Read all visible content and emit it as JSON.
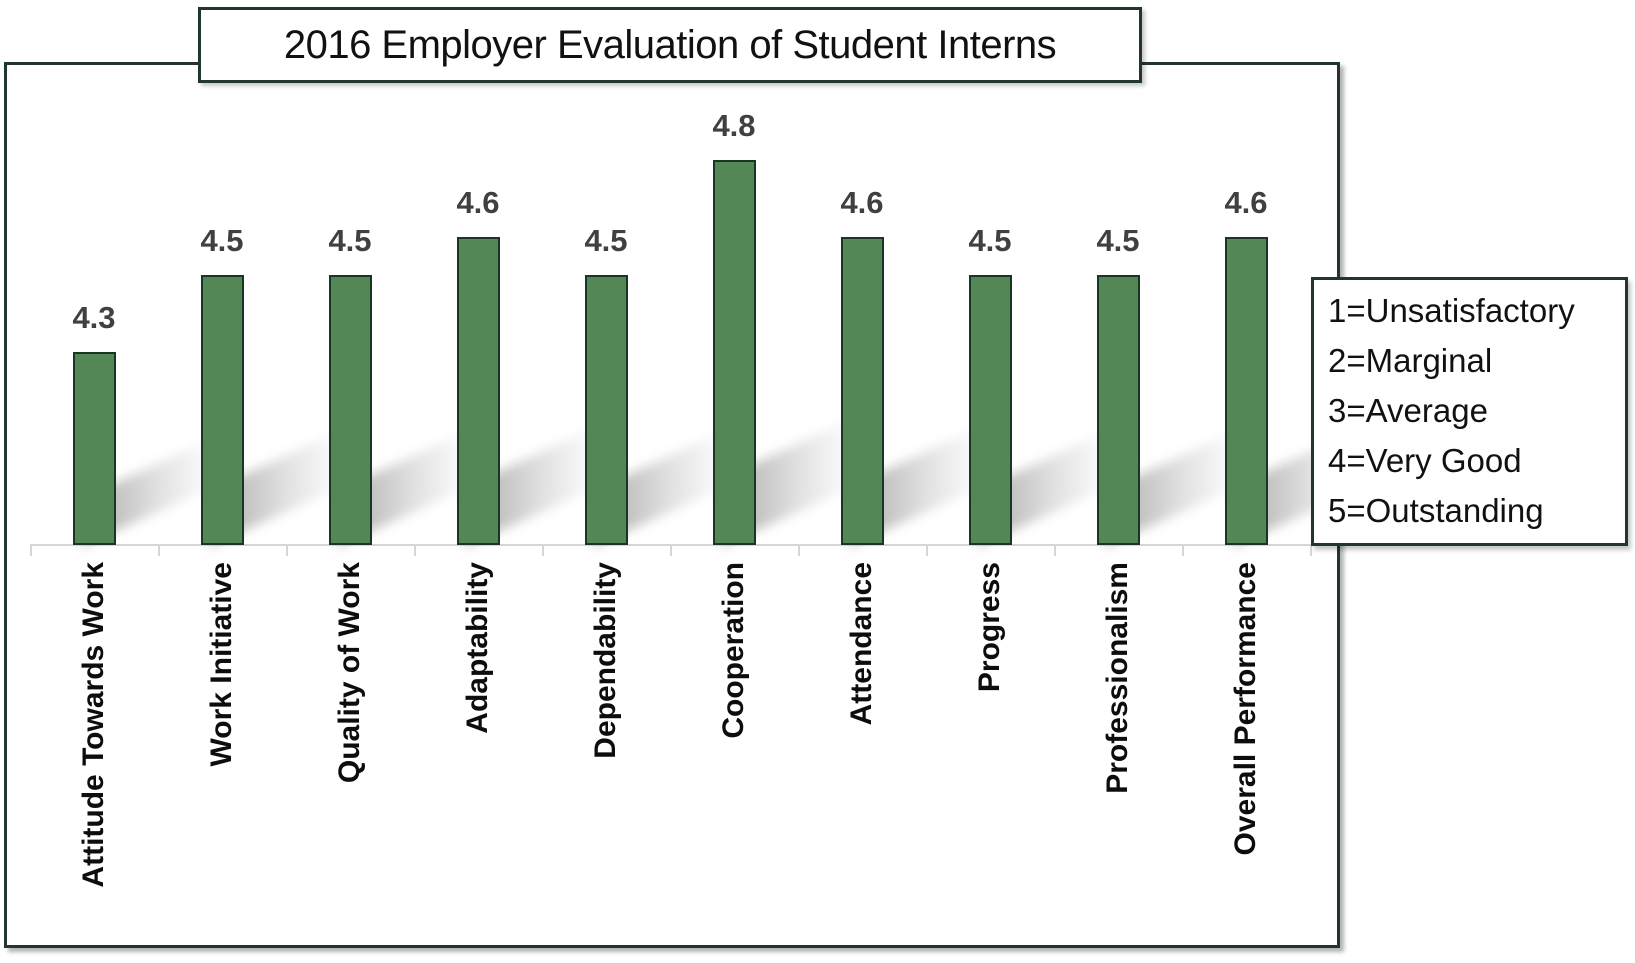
{
  "chart_data": {
    "type": "bar",
    "title": "2016 Employer Evaluation of Student Interns",
    "categories": [
      "Attitude Towards Work",
      "Work Initiative",
      "Quality of Work",
      "Adaptability",
      "Dependability",
      "Cooperation",
      "Attendance",
      "Progress",
      "Professionalism",
      "Overall Performance"
    ],
    "values": [
      4.3,
      4.5,
      4.5,
      4.6,
      4.5,
      4.8,
      4.6,
      4.5,
      4.5,
      4.6
    ],
    "data_labels": [
      "4.3",
      "4.5",
      "4.5",
      "4.6",
      "4.5",
      "4.8",
      "4.6",
      "4.5",
      "4.5",
      "4.6"
    ],
    "xlabel": "",
    "ylabel": "",
    "ylim": [
      3.8,
      5.0
    ],
    "grid": false,
    "x_axis_visible": true,
    "y_axis_visible": false,
    "legend_position": "right",
    "legend_lines": [
      "1=Unsatisfactory",
      "2=Marginal",
      "3=Average",
      "4=Very Good",
      "5=Outstanding"
    ],
    "colors": {
      "bar_fill": "#538755",
      "bar_border": "#1b3524",
      "box_border": "#22372b",
      "value_label": "#404040",
      "category_label": "#0d0d0d",
      "axis_line": "#d6d6d6",
      "title_text": "#111111",
      "legend_text": "#111111"
    }
  }
}
